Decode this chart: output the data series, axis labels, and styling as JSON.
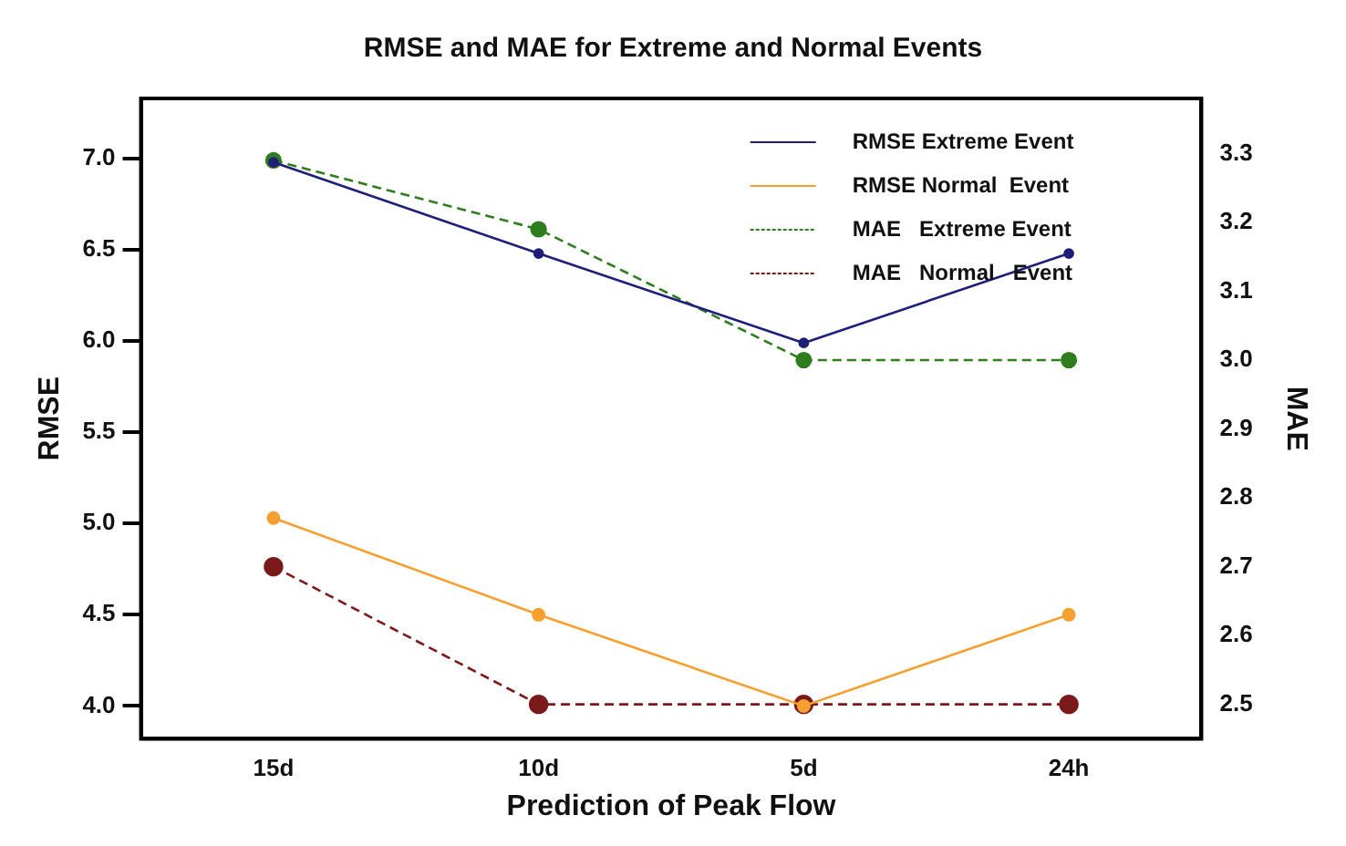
{
  "chart_data": {
    "type": "line",
    "title": "RMSE and MAE for Extreme and Normal Events",
    "xlabel": "Prediction of Peak Flow",
    "ylabel": "RMSE",
    "y2label": "MAE",
    "categories": [
      "15d",
      "10d",
      "5d",
      "24h"
    ],
    "series": [
      {
        "name": "RMSE Extreme Event",
        "color": "#1f1f7a",
        "values": [
          6.98,
          6.48,
          5.99,
          6.48
        ],
        "axis": "y",
        "line_style": "solid"
      },
      {
        "name": "RMSE Normal  Event",
        "color": "#f5a030",
        "values": [
          5.03,
          4.5,
          4.0,
          4.5
        ],
        "axis": "y",
        "line_style": "solid"
      },
      {
        "name": "MAE   Extreme Event",
        "color": "#2e7d1e",
        "values": [
          3.29,
          3.19,
          3.0,
          3.0
        ],
        "axis": "y2",
        "line_style": "dashed"
      },
      {
        "name": "MAE   Normal   Event",
        "color": "#7a1a1a",
        "values": [
          2.7,
          2.5,
          2.5,
          2.5
        ],
        "axis": "y2",
        "line_style": "dashed"
      }
    ],
    "ylim": [
      3.82,
      7.33
    ],
    "yticks": [
      {
        "value": 4,
        "label": "4.0"
      },
      4.5,
      {
        "value": 5,
        "label": "5.0"
      },
      5.5,
      {
        "value": 6,
        "label": "6.0"
      },
      6.5,
      {
        "value": 7,
        "label": "7.0"
      }
    ],
    "y2lim": [
      2.45,
      3.38
    ],
    "y2ticks": [
      2.5,
      2.6,
      2.7,
      2.8,
      2.9,
      {
        "value": 3,
        "label": "3.0"
      },
      3.1,
      3.2,
      3.3
    ],
    "legend": "top right",
    "grid": false,
    "marker": "circle"
  }
}
